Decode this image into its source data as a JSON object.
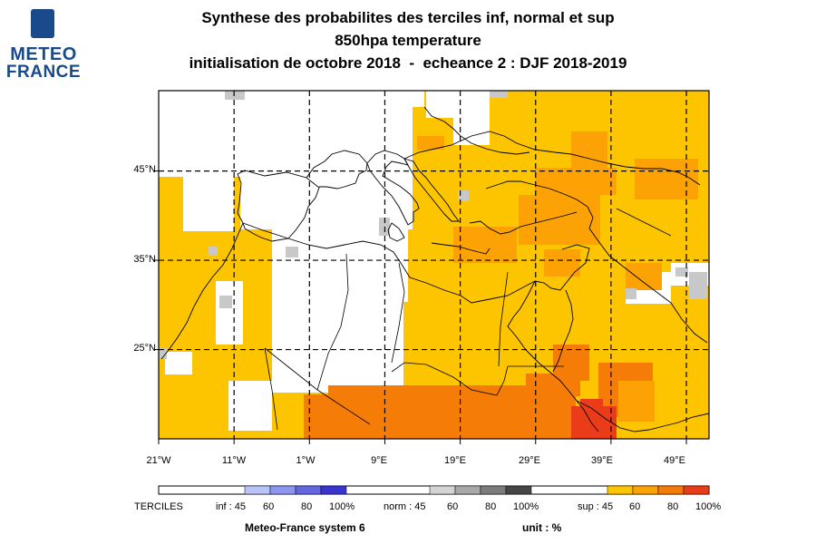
{
  "titles": {
    "line1": "Synthese des probabilites des terciles inf, normal et sup",
    "line2": "850hpa temperature",
    "line3": "initialisation de octobre 2018  -  echeance 2 : DJF 2018-2019"
  },
  "logo": {
    "line1": "METEO",
    "line2": "FRANCE"
  },
  "map": {
    "lon_range": [
      -21,
      52
    ],
    "lat_range": [
      15,
      54
    ],
    "grid_lons": [
      -11,
      -1,
      9,
      19,
      29,
      39,
      49
    ],
    "grid_lats": [
      25,
      35,
      45
    ],
    "x_tick_labels": [
      "21°W",
      "11°W",
      "1°W",
      "9°E",
      "19°E",
      "29°E",
      "39°E",
      "49°E"
    ],
    "y_tick_labels": [
      "45°N",
      "35°N",
      "25°N"
    ]
  },
  "legend": {
    "terciles_label": "TERCILES",
    "inf_labels": [
      "inf : 45",
      "60",
      "80",
      "100%"
    ],
    "norm_labels": [
      "norm : 45",
      "60",
      "80",
      "100%"
    ],
    "sup_labels": [
      "sup : 45",
      "60",
      "80",
      "100%"
    ],
    "inf_colors": [
      "#b8c4f8",
      "#8c96f0",
      "#6468e0",
      "#3a34d0"
    ],
    "norm_colors": [
      "#d4d4d4",
      "#a8a8a8",
      "#7c7c7c",
      "#464646"
    ],
    "sup_colors": [
      "#fdc400",
      "#fca204",
      "#f67c08",
      "#ea3c18"
    ]
  },
  "footer": {
    "system": "Meteo-France system 6",
    "unit": "unit : %"
  }
}
